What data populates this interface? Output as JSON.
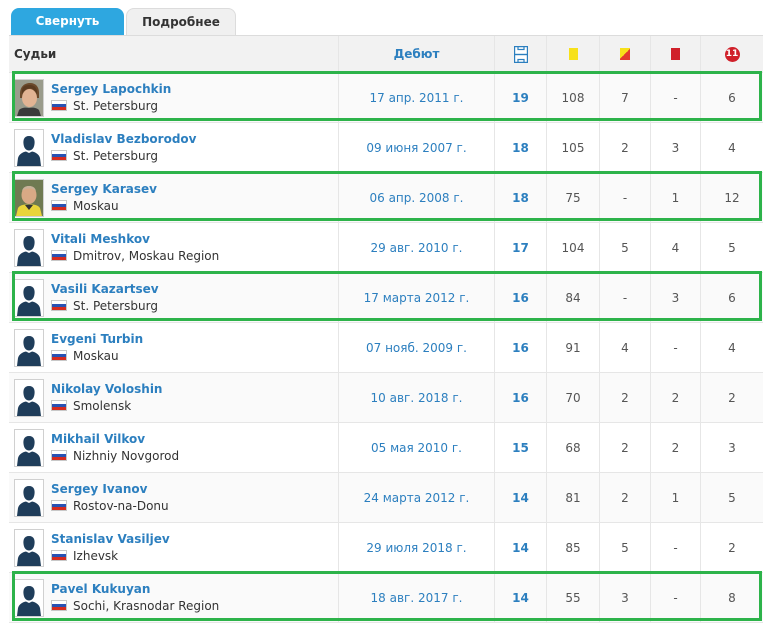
{
  "tabs": [
    {
      "label": "Свернуть"
    },
    {
      "label": "Подробнее"
    }
  ],
  "header": {
    "referees_label": "Судьи",
    "debut_label": "Дебют",
    "icons": [
      "games-icon",
      "yellow-card-icon",
      "second-yellow-card-icon",
      "red-card-icon",
      "penalty-icon"
    ],
    "penalty_icon_text": "11"
  },
  "colors": {
    "accent": "#2ea7e0",
    "link": "#2c7fbf",
    "highlight": "#2db34a",
    "yellow": "#f7e11a",
    "red": "#d0202a"
  },
  "rows": [
    {
      "name": "Sergey Lapochkin",
      "city": "St. Petersburg",
      "debut": "17 апр. 2011 г.",
      "games": "19",
      "yellow": "108",
      "yellow_red": "7",
      "red": "-",
      "penalties": "6",
      "photo": "photo-1",
      "highlighted": true
    },
    {
      "name": "Vladislav Bezborodov",
      "city": "St. Petersburg",
      "debut": "09 июня 2007 г.",
      "games": "18",
      "yellow": "105",
      "yellow_red": "2",
      "red": "3",
      "penalties": "4",
      "photo": "placeholder",
      "highlighted": false
    },
    {
      "name": "Sergey Karasev",
      "city": "Moskau",
      "debut": "06 апр. 2008 г.",
      "games": "18",
      "yellow": "75",
      "yellow_red": "-",
      "red": "1",
      "penalties": "12",
      "photo": "photo-2",
      "highlighted": true
    },
    {
      "name": "Vitali Meshkov",
      "city": "Dmitrov, Moskau Region",
      "debut": "29 авг. 2010 г.",
      "games": "17",
      "yellow": "104",
      "yellow_red": "5",
      "red": "4",
      "penalties": "5",
      "photo": "placeholder",
      "highlighted": false
    },
    {
      "name": "Vasili Kazartsev",
      "city": "St. Petersburg",
      "debut": "17 марта 2012 г.",
      "games": "16",
      "yellow": "84",
      "yellow_red": "-",
      "red": "3",
      "penalties": "6",
      "photo": "placeholder",
      "highlighted": true
    },
    {
      "name": "Evgeni Turbin",
      "city": "Moskau",
      "debut": "07 нояб. 2009 г.",
      "games": "16",
      "yellow": "91",
      "yellow_red": "4",
      "red": "-",
      "penalties": "4",
      "photo": "placeholder",
      "highlighted": false
    },
    {
      "name": "Nikolay Voloshin",
      "city": "Smolensk",
      "debut": "10 авг. 2018 г.",
      "games": "16",
      "yellow": "70",
      "yellow_red": "2",
      "red": "2",
      "penalties": "2",
      "photo": "placeholder",
      "highlighted": false
    },
    {
      "name": "Mikhail Vilkov",
      "city": "Nizhniy Novgorod",
      "debut": "05 мая 2010 г.",
      "games": "15",
      "yellow": "68",
      "yellow_red": "2",
      "red": "2",
      "penalties": "3",
      "photo": "placeholder",
      "highlighted": false
    },
    {
      "name": "Sergey Ivanov",
      "city": "Rostov-na-Donu",
      "debut": "24 марта 2012 г.",
      "games": "14",
      "yellow": "81",
      "yellow_red": "2",
      "red": "1",
      "penalties": "5",
      "photo": "placeholder",
      "highlighted": false
    },
    {
      "name": "Stanislav Vasiljev",
      "city": "Izhevsk",
      "debut": "29 июля 2018 г.",
      "games": "14",
      "yellow": "85",
      "yellow_red": "5",
      "red": "-",
      "penalties": "2",
      "photo": "placeholder",
      "highlighted": false
    },
    {
      "name": "Pavel Kukuyan",
      "city": "Sochi, Krasnodar Region",
      "debut": "18 авг. 2017 г.",
      "games": "14",
      "yellow": "55",
      "yellow_red": "3",
      "red": "-",
      "penalties": "8",
      "photo": "placeholder",
      "highlighted": true
    }
  ]
}
